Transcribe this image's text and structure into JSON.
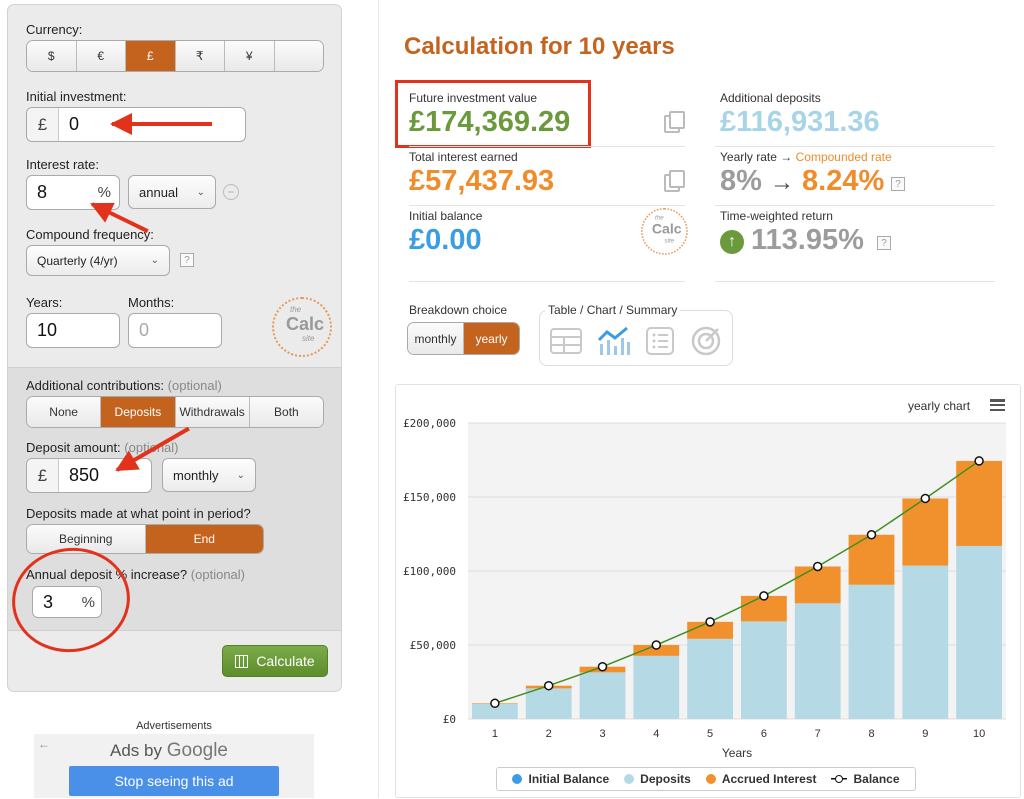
{
  "form": {
    "currency_label": "Currency:",
    "currencies": [
      "$",
      "€",
      "£",
      "₹",
      "¥",
      ""
    ],
    "selected_currency": "£",
    "initial_label": "Initial investment:",
    "initial_prefix": "£",
    "initial_value": "0",
    "rate_label": "Interest rate:",
    "rate_value": "8",
    "rate_unit": "%",
    "rate_period": "annual",
    "compound_label": "Compound frequency:",
    "compound_value": "Quarterly (4/yr)",
    "years_label": "Years:",
    "years_value": "10",
    "months_label": "Months:",
    "months_placeholder": "0",
    "contrib_label": "Additional contributions:",
    "contrib_opt": "(optional)",
    "contrib_options": [
      "None",
      "Deposits",
      "Withdrawals",
      "Both"
    ],
    "contrib_selected": "Deposits",
    "deposit_label": "Deposit amount:",
    "deposit_opt": "(optional)",
    "deposit_prefix": "£",
    "deposit_value": "850",
    "deposit_period": "monthly",
    "timing_label": "Deposits made at what point in period?",
    "timing_options": [
      "Beginning",
      "End"
    ],
    "timing_selected": "End",
    "increase_label": "Annual deposit % increase?",
    "increase_opt": "(optional)",
    "increase_value": "3",
    "increase_unit": "%",
    "calculate_label": "Calculate",
    "help": "?"
  },
  "logo": {
    "small": "the",
    "big": "Calc",
    "sub": "site",
    "digits": "1234567890"
  },
  "ads": {
    "header": "Advertisements",
    "ads_by": "Ads by",
    "google": "Google",
    "stop": "Stop seeing this ad",
    "back": "←"
  },
  "results": {
    "title": "Calculation for 10 years",
    "future_label": "Future investment value",
    "future_value": "£174,369.29",
    "interest_label": "Total interest earned",
    "interest_value": "£57,437.93",
    "initial_label": "Initial balance",
    "initial_value": "£0.00",
    "deposits_label": "Additional deposits",
    "deposits_value": "£116,931.36",
    "yearly_rate_label": "Yearly rate →",
    "compounded_label": "Compounded rate",
    "yearly_rate_value": "8%",
    "rate_arrow": "→",
    "compounded_value": "8.24%",
    "twr_label": "Time-weighted return",
    "twr_value": "113.95%",
    "help": "?"
  },
  "breakdown": {
    "label": "Breakdown choice",
    "options": [
      "monthly",
      "yearly"
    ],
    "selected": "yearly",
    "view_label": "Table / Chart / Summary"
  },
  "colors": {
    "accent": "#c4631e",
    "green": "#6a9a3b",
    "orange": "#f08c2a",
    "blue": "#3b9de3",
    "lightblue": "#a8d4e8",
    "gray": "#9c9c9c",
    "deposit_bar": "#b6d9e6",
    "interest_bar": "#f0912e",
    "line": "#3f8f1f"
  },
  "chart_data": {
    "type": "bar",
    "title": "yearly chart",
    "xlabel": "Years",
    "ylabel": "",
    "categories": [
      "1",
      "2",
      "3",
      "4",
      "5",
      "6",
      "7",
      "8",
      "9",
      "10"
    ],
    "ylim": [
      0,
      200000
    ],
    "yticks": [
      "£0",
      "£50,000",
      "£100,000",
      "£150,000",
      "£200,000"
    ],
    "stacked": true,
    "series": [
      {
        "name": "Initial Balance",
        "values": [
          0,
          0,
          0,
          0,
          0,
          0,
          0,
          0,
          0,
          0
        ]
      },
      {
        "name": "Deposits",
        "values": [
          10200,
          20706,
          31527,
          42673,
          54153,
          65978,
          78157,
          90702,
          103623,
          116931
        ]
      },
      {
        "name": "Accrued Interest",
        "values": [
          400,
          1800,
          3800,
          7300,
          11500,
          17200,
          24900,
          33800,
          45400,
          57438
        ]
      },
      {
        "name": "Balance",
        "type": "line",
        "values": [
          10600,
          22506,
          35327,
          49973,
          65653,
          83178,
          103057,
          124502,
          149023,
          174369
        ]
      }
    ],
    "legend": [
      "Initial Balance",
      "Deposits",
      "Accrued Interest",
      "Balance"
    ],
    "legend_position": "bottom",
    "grid": true
  }
}
